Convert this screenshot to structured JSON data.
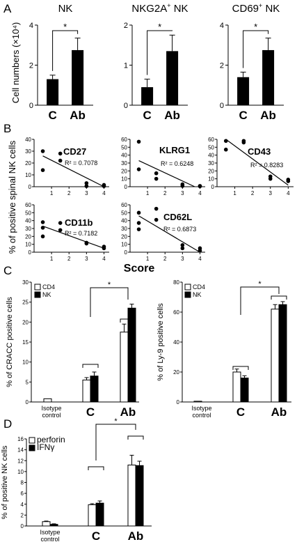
{
  "panels": [
    {
      "letter": "A",
      "ylabel": "Cell numbers (×10⁴)",
      "chart_data": [
        {
          "type": "bar",
          "title_main": "NK",
          "title_sup": "",
          "title_post": "",
          "categories": [
            "C",
            "Ab"
          ],
          "values": [
            1.3,
            2.75
          ],
          "errors": [
            0.2,
            0.6
          ],
          "ylim": [
            0,
            4
          ],
          "yticks": [
            "0",
            "2",
            "4"
          ],
          "sig": "*"
        },
        {
          "type": "bar",
          "title_main": "NKG2A",
          "title_sup": "+",
          "title_post": " NK",
          "categories": [
            "C",
            "Ab"
          ],
          "values": [
            0.45,
            1.35
          ],
          "errors": [
            0.2,
            0.4
          ],
          "ylim": [
            0,
            2
          ],
          "yticks": [
            "0",
            "1",
            "2"
          ],
          "sig": "*"
        },
        {
          "type": "bar",
          "title_main": "CD69",
          "title_sup": "+",
          "title_post": " NK",
          "categories": [
            "C",
            "Ab"
          ],
          "values": [
            1.4,
            2.75
          ],
          "errors": [
            0.25,
            0.6
          ],
          "ylim": [
            0,
            4
          ],
          "yticks": [
            "0",
            "2",
            "4"
          ],
          "sig": "*"
        }
      ]
    },
    {
      "letter": "B",
      "ylabel": "% of positive spinal NK cells",
      "xlabel": "Score",
      "chart_data": [
        {
          "type": "scatter",
          "marker": "CD27",
          "r2": "R² = 0.7078",
          "points": [
            [
              0.5,
              30
            ],
            [
              0.5,
              14
            ],
            [
              1.5,
              28
            ],
            [
              1.5,
              22
            ],
            [
              3,
              3
            ],
            [
              3,
              0.5
            ],
            [
              4,
              1.5
            ],
            [
              4,
              0.5
            ]
          ],
          "fit": [
            [
              0.5,
              26
            ],
            [
              4,
              0
            ]
          ],
          "xlim": [
            0,
            4.3
          ],
          "ylim": [
            0,
            40
          ],
          "xticks": [
            "1",
            "2",
            "3",
            "4"
          ],
          "yticks": [
            "0",
            "10",
            "20",
            "30",
            "40"
          ]
        },
        {
          "type": "scatter",
          "marker": "KLRG1",
          "r2": "R² = 0.6248",
          "points": [
            [
              0.5,
              57
            ],
            [
              0.5,
              22
            ],
            [
              1.5,
              17
            ],
            [
              1.5,
              10
            ],
            [
              3,
              3
            ],
            [
              3,
              1
            ],
            [
              4,
              1
            ],
            [
              4,
              0.5
            ]
          ],
          "fit": [
            [
              0.5,
              33
            ],
            [
              3.7,
              0
            ]
          ],
          "xlim": [
            0,
            4.3
          ],
          "ylim": [
            0,
            60
          ],
          "xticks": [
            "1",
            "2",
            "3",
            "4"
          ],
          "yticks": [
            "0",
            "10",
            "20",
            "30",
            "40",
            "50",
            "60"
          ]
        },
        {
          "type": "scatter",
          "marker": "CD43",
          "r2": "R² = 0.8283",
          "points": [
            [
              0.5,
              58
            ],
            [
              0.5,
              47
            ],
            [
              1.5,
              58
            ],
            [
              1.5,
              56
            ],
            [
              3,
              13
            ],
            [
              3,
              10
            ],
            [
              4,
              9
            ],
            [
              4,
              7
            ]
          ],
          "fit": [
            [
              0.5,
              60
            ],
            [
              4,
              2
            ]
          ],
          "xlim": [
            0,
            4.3
          ],
          "ylim": [
            0,
            60
          ],
          "xticks": [
            "1",
            "2",
            "3",
            "4"
          ],
          "yticks": [
            "0",
            "10",
            "20",
            "30",
            "40",
            "50",
            "60"
          ]
        },
        {
          "type": "scatter",
          "marker": "CD11b",
          "r2": "R² = 0.7182",
          "points": [
            [
              0.5,
              38
            ],
            [
              0.5,
              31
            ],
            [
              0.5,
              20
            ],
            [
              1.5,
              37
            ],
            [
              1.5,
              28
            ],
            [
              3,
              12
            ],
            [
              3,
              11
            ],
            [
              4,
              7
            ],
            [
              4,
              5
            ]
          ],
          "fit": [
            [
              0.5,
              33
            ],
            [
              4,
              5
            ]
          ],
          "xlim": [
            0,
            4.3
          ],
          "ylim": [
            0,
            60
          ],
          "xticks": [
            "1",
            "2",
            "3",
            "4"
          ],
          "yticks": [
            "0",
            "10",
            "20",
            "30",
            "40",
            "50",
            "60"
          ]
        },
        {
          "type": "scatter",
          "marker": "CD62L",
          "r2": "R² = 0.6873",
          "points": [
            [
              0.5,
              50
            ],
            [
              0.5,
              37
            ],
            [
              0.5,
              29
            ],
            [
              1.5,
              55
            ],
            [
              1.5,
              41
            ],
            [
              3,
              9
            ],
            [
              3,
              5
            ],
            [
              4,
              5
            ],
            [
              4,
              2
            ]
          ],
          "fit": [
            [
              0.5,
              46
            ],
            [
              4,
              0
            ]
          ],
          "xlim": [
            0,
            4.3
          ],
          "ylim": [
            0,
            60
          ],
          "xticks": [
            "1",
            "2",
            "3",
            "4"
          ],
          "yticks": [
            "0",
            "10",
            "20",
            "30",
            "40",
            "50",
            "60"
          ]
        }
      ]
    },
    {
      "letter": "C",
      "chart_data": [
        {
          "type": "bar",
          "ylabel": "% of CRACC positive cells",
          "categories": [
            "Isotype control",
            "C",
            "Ab"
          ],
          "series": [
            {
              "name": "CD4",
              "color": "#ffffff",
              "values": [
                0.8,
                5.5,
                17.5
              ],
              "errors": [
                0,
                0.6,
                2
              ]
            },
            {
              "name": "NK",
              "color": "#000000",
              "values": [
                0,
                6.5,
                23.5
              ],
              "errors": [
                0,
                1,
                1
              ]
            }
          ],
          "ylim": [
            0,
            30
          ],
          "yticks": [
            "0",
            "5",
            "10",
            "15",
            "20",
            "25",
            "30"
          ],
          "sig": "*"
        },
        {
          "type": "bar",
          "ylabel": "% of Ly-9 positive cells",
          "categories": [
            "Isotype control",
            "C",
            "Ab"
          ],
          "series": [
            {
              "name": "CD4",
              "color": "#ffffff",
              "values": [
                0.5,
                20,
                62
              ],
              "errors": [
                0,
                2,
                3
              ]
            },
            {
              "name": "NK",
              "color": "#000000",
              "values": [
                0,
                16,
                65
              ],
              "errors": [
                0,
                1.5,
                2
              ]
            }
          ],
          "ylim": [
            0,
            80
          ],
          "yticks": [
            "0",
            "20",
            "40",
            "60",
            "80"
          ],
          "sig": "*"
        }
      ]
    },
    {
      "letter": "D",
      "chart_data": [
        {
          "type": "bar",
          "ylabel": "% of positive NK cells",
          "categories": [
            "Isotype control",
            "C",
            "Ab"
          ],
          "series": [
            {
              "name": "perforin",
              "color": "#ffffff",
              "values": [
                0.8,
                3.9,
                11.2
              ],
              "errors": [
                0.1,
                0.2,
                1.8
              ]
            },
            {
              "name": "IFNγ",
              "color": "#000000",
              "values": [
                0.3,
                4.2,
                11.1
              ],
              "errors": [
                0.1,
                0.4,
                0.8
              ]
            }
          ],
          "ylim": [
            0,
            16
          ],
          "yticks": [
            "0",
            "2",
            "4",
            "6",
            "8",
            "10",
            "12",
            "14",
            "16"
          ],
          "sig": "*"
        }
      ]
    }
  ]
}
